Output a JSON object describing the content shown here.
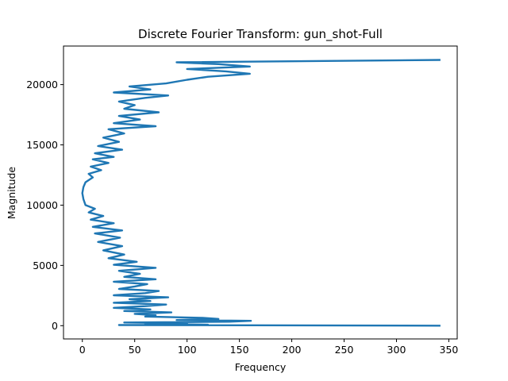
{
  "chart_data": {
    "type": "line",
    "title": "Discrete Fourier Transform: gun_shot-Full",
    "xlabel": "Frequency",
    "ylabel": "Magnitude",
    "xlim": [
      -18,
      358
    ],
    "ylim": [
      -1100,
      23200
    ],
    "x_ticks": [
      0,
      50,
      100,
      150,
      200,
      250,
      300,
      350
    ],
    "y_ticks": [
      0,
      5000,
      10000,
      15000,
      20000
    ],
    "grid": false,
    "legend": "none",
    "line_color": "#1f77b4",
    "series": [
      {
        "note_unused": "",
        "points": [
          [
            342,
            0
          ],
          [
            35,
            50
          ],
          [
            120,
            80
          ],
          [
            60,
            150
          ],
          [
            100,
            200
          ],
          [
            40,
            260
          ],
          [
            140,
            330
          ],
          [
            161,
            400
          ],
          [
            90,
            470
          ],
          [
            130,
            560
          ],
          [
            115,
            650
          ],
          [
            60,
            760
          ],
          [
            70,
            860
          ],
          [
            50,
            980
          ],
          [
            85,
            1100
          ],
          [
            40,
            1220
          ],
          [
            65,
            1350
          ],
          [
            30,
            1480
          ],
          [
            60,
            1620
          ],
          [
            80,
            1750
          ],
          [
            30,
            1900
          ],
          [
            65,
            2050
          ],
          [
            45,
            2200
          ],
          [
            82,
            2350
          ],
          [
            30,
            2520
          ],
          [
            60,
            2700
          ],
          [
            73,
            2880
          ],
          [
            35,
            3050
          ],
          [
            50,
            3250
          ],
          [
            62,
            3450
          ],
          [
            30,
            3650
          ],
          [
            70,
            3850
          ],
          [
            40,
            4050
          ],
          [
            55,
            4300
          ],
          [
            35,
            4550
          ],
          [
            70,
            4800
          ],
          [
            30,
            5050
          ],
          [
            52,
            5300
          ],
          [
            25,
            5600
          ],
          [
            40,
            5900
          ],
          [
            20,
            6250
          ],
          [
            38,
            6600
          ],
          [
            15,
            6950
          ],
          [
            36,
            7300
          ],
          [
            12,
            7650
          ],
          [
            38,
            7900
          ],
          [
            10,
            8200
          ],
          [
            30,
            8500
          ],
          [
            8,
            8800
          ],
          [
            20,
            9100
          ],
          [
            6,
            9400
          ],
          [
            12,
            9700
          ],
          [
            3,
            10000
          ],
          [
            1,
            10500
          ],
          [
            0,
            11000
          ],
          [
            1,
            11500
          ],
          [
            3,
            11900
          ],
          [
            10,
            12300
          ],
          [
            6,
            12600
          ],
          [
            18,
            12900
          ],
          [
            8,
            13200
          ],
          [
            25,
            13500
          ],
          [
            10,
            13800
          ],
          [
            30,
            14000
          ],
          [
            12,
            14300
          ],
          [
            38,
            14600
          ],
          [
            15,
            14900
          ],
          [
            35,
            15250
          ],
          [
            20,
            15600
          ],
          [
            40,
            15950
          ],
          [
            25,
            16300
          ],
          [
            70,
            16550
          ],
          [
            30,
            16800
          ],
          [
            55,
            17100
          ],
          [
            35,
            17400
          ],
          [
            73,
            17700
          ],
          [
            40,
            18000
          ],
          [
            50,
            18300
          ],
          [
            35,
            18600
          ],
          [
            60,
            18900
          ],
          [
            82,
            19100
          ],
          [
            30,
            19350
          ],
          [
            65,
            19600
          ],
          [
            45,
            19850
          ],
          [
            80,
            20100
          ],
          [
            100,
            20400
          ],
          [
            120,
            20650
          ],
          [
            160,
            20900
          ],
          [
            137,
            21100
          ],
          [
            100,
            21300
          ],
          [
            160,
            21500
          ],
          [
            130,
            21700
          ],
          [
            90,
            21850
          ],
          [
            342,
            22050
          ]
        ]
      }
    ]
  }
}
